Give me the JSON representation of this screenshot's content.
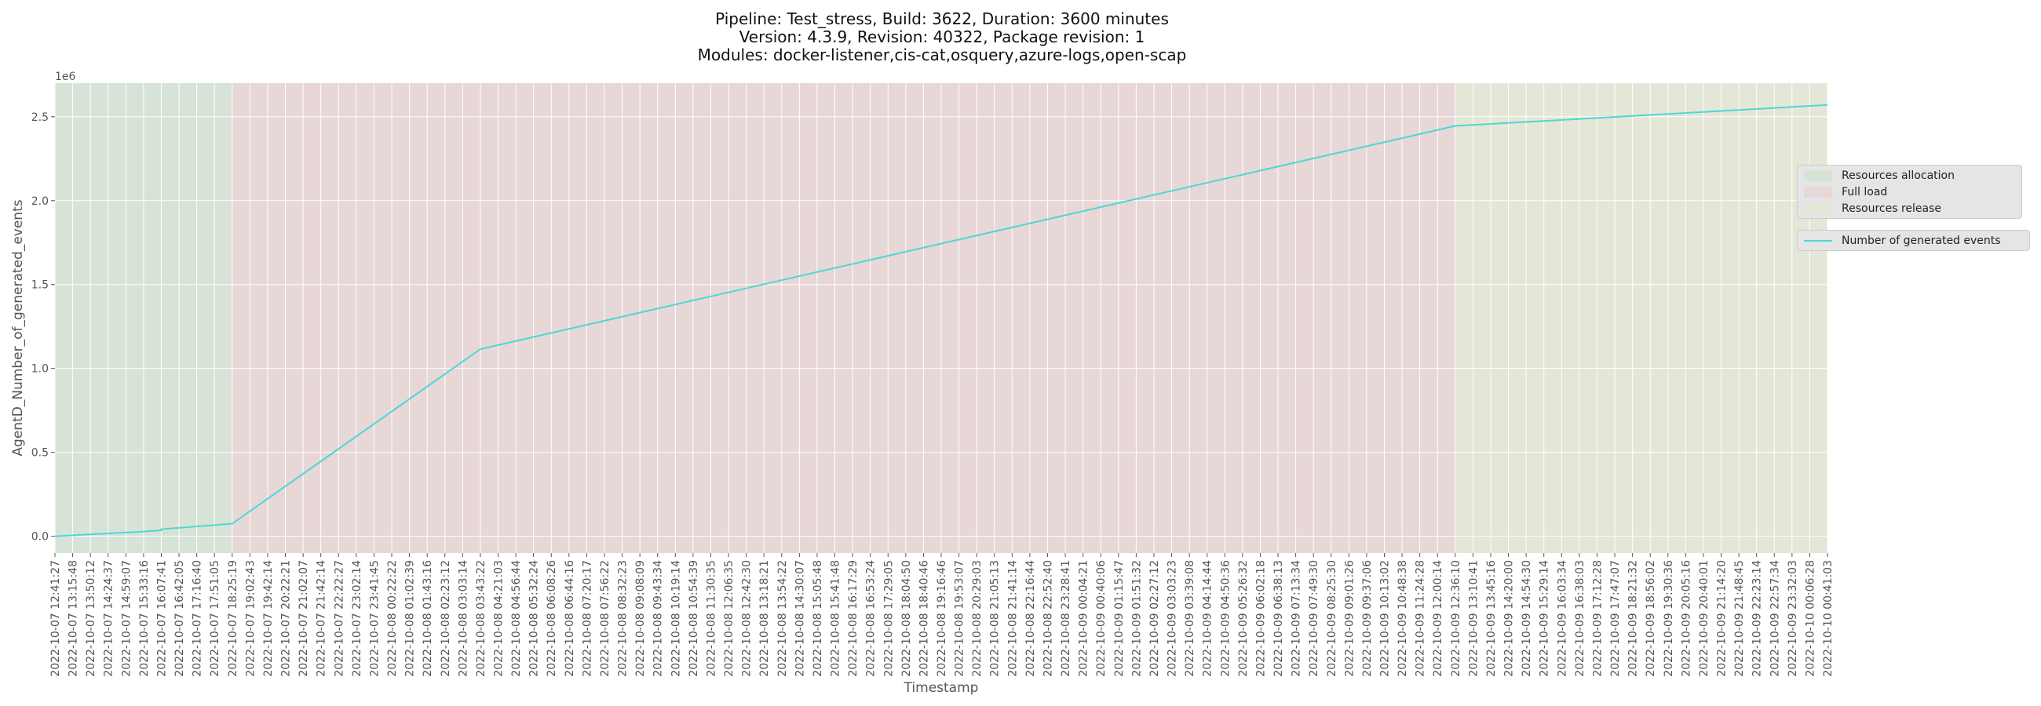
{
  "chart_data": {
    "type": "line",
    "title_lines": [
      "Pipeline: Test_stress, Build: 3622, Duration: 3600 minutes",
      "Version: 4.3.9, Revision: 40322, Package revision: 1",
      "Modules: docker-listener,cis-cat,osquery,azure-logs,open-scap"
    ],
    "xlabel": "Timestamp",
    "ylabel": "AgentD_Number_of_generated_events",
    "y_offset_text": "1e6",
    "ylim": [
      -0.1,
      2.7
    ],
    "yticks": [
      0.0,
      0.5,
      1.0,
      1.5,
      2.0,
      2.5
    ],
    "ytick_labels": [
      "0.0",
      "0.5",
      "1.0",
      "1.5",
      "2.0",
      "2.5"
    ],
    "x_tick_labels": [
      "2022-10-07 12:41:27",
      "2022-10-07 13:15:48",
      "2022-10-07 13:50:12",
      "2022-10-07 14:24:37",
      "2022-10-07 14:59:07",
      "2022-10-07 15:33:16",
      "2022-10-07 16:07:41",
      "2022-10-07 16:42:05",
      "2022-10-07 17:16:40",
      "2022-10-07 17:51:05",
      "2022-10-07 18:25:19",
      "2022-10-07 19:02:43",
      "2022-10-07 19:42:14",
      "2022-10-07 20:22:21",
      "2022-10-07 21:02:07",
      "2022-10-07 21:42:14",
      "2022-10-07 22:22:27",
      "2022-10-07 23:02:14",
      "2022-10-07 23:41:45",
      "2022-10-08 00:22:22",
      "2022-10-08 01:02:39",
      "2022-10-08 01:43:16",
      "2022-10-08 02:23:12",
      "2022-10-08 03:03:14",
      "2022-10-08 03:43:22",
      "2022-10-08 04:21:03",
      "2022-10-08 04:56:44",
      "2022-10-08 05:32:24",
      "2022-10-08 06:08:26",
      "2022-10-08 06:44:16",
      "2022-10-08 07:20:17",
      "2022-10-08 07:56:22",
      "2022-10-08 08:32:23",
      "2022-10-08 09:08:09",
      "2022-10-08 09:43:34",
      "2022-10-08 10:19:14",
      "2022-10-08 10:54:39",
      "2022-10-08 11:30:35",
      "2022-10-08 12:06:35",
      "2022-10-08 12:42:30",
      "2022-10-08 13:18:21",
      "2022-10-08 13:54:22",
      "2022-10-08 14:30:07",
      "2022-10-08 15:05:48",
      "2022-10-08 15:41:48",
      "2022-10-08 16:17:29",
      "2022-10-08 16:53:24",
      "2022-10-08 17:29:05",
      "2022-10-08 18:04:50",
      "2022-10-08 18:40:46",
      "2022-10-08 19:16:46",
      "2022-10-08 19:53:07",
      "2022-10-08 20:29:03",
      "2022-10-08 21:05:13",
      "2022-10-08 21:41:14",
      "2022-10-08 22:16:44",
      "2022-10-08 22:52:40",
      "2022-10-08 23:28:41",
      "2022-10-09 00:04:21",
      "2022-10-09 00:40:06",
      "2022-10-09 01:15:47",
      "2022-10-09 01:51:32",
      "2022-10-09 02:27:12",
      "2022-10-09 03:03:23",
      "2022-10-09 03:39:08",
      "2022-10-09 04:14:44",
      "2022-10-09 04:50:36",
      "2022-10-09 05:26:32",
      "2022-10-09 06:02:18",
      "2022-10-09 06:38:13",
      "2022-10-09 07:13:34",
      "2022-10-09 07:49:30",
      "2022-10-09 08:25:30",
      "2022-10-09 09:01:26",
      "2022-10-09 09:37:06",
      "2022-10-09 10:13:02",
      "2022-10-09 10:48:38",
      "2022-10-09 11:24:28",
      "2022-10-09 12:00:14",
      "2022-10-09 12:36:10",
      "2022-10-09 13:10:41",
      "2022-10-09 13:45:16",
      "2022-10-09 14:20:00",
      "2022-10-09 14:54:30",
      "2022-10-09 15:29:14",
      "2022-10-09 16:03:34",
      "2022-10-09 16:38:03",
      "2022-10-09 17:12:28",
      "2022-10-09 17:47:07",
      "2022-10-09 18:21:32",
      "2022-10-09 18:56:02",
      "2022-10-09 19:30:36",
      "2022-10-09 20:05:16",
      "2022-10-09 20:40:01",
      "2022-10-09 21:14:20",
      "2022-10-09 21:48:45",
      "2022-10-09 22:23:14",
      "2022-10-09 22:57:34",
      "2022-10-09 23:32:03",
      "2022-10-10 00:06:28",
      "2022-10-10 00:41:03"
    ],
    "phases": [
      {
        "name": "Resources allocation",
        "start": "2022-10-07 12:41:27",
        "end": "2022-10-07 18:25:19",
        "color": "#d7e3d7"
      },
      {
        "name": "Full load",
        "start": "2022-10-07 18:25:19",
        "end": "2022-10-09 12:36:10",
        "color": "#e7d7d7"
      },
      {
        "name": "Resources release",
        "start": "2022-10-09 12:36:10",
        "end": "2022-10-10 00:41:03",
        "color": "#e4e6d7"
      }
    ],
    "series": [
      {
        "name": "Number of generated events",
        "color": "#4fd6d6",
        "points": [
          {
            "x": "2022-10-07 12:41:27",
            "y": 0.0
          },
          {
            "x": "2022-10-07 15:33:16",
            "y": 0.028
          },
          {
            "x": "2022-10-07 16:07:41",
            "y": 0.035
          },
          {
            "x": "2022-10-07 16:07:41",
            "y": 0.042
          },
          {
            "x": "2022-10-07 18:25:19",
            "y": 0.075
          },
          {
            "x": "2022-10-08 03:43:22",
            "y": 1.115
          },
          {
            "x": "2022-10-09 12:36:10",
            "y": 2.445
          },
          {
            "x": "2022-10-10 00:41:03",
            "y": 2.57
          }
        ]
      }
    ],
    "grid": true,
    "legend_position": "right"
  }
}
